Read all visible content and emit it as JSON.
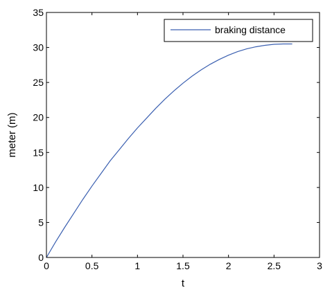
{
  "chart_data": {
    "type": "line",
    "xlabel": "t",
    "ylabel": "meter (m)",
    "xlim": [
      0,
      3
    ],
    "ylim": [
      0,
      35
    ],
    "x_ticks": [
      "0",
      "0.5",
      "1",
      "1.5",
      "2",
      "2.5",
      "3"
    ],
    "y_ticks": [
      "0",
      "5",
      "10",
      "15",
      "20",
      "25",
      "30",
      "35"
    ],
    "grid": false,
    "legend_position": "top-right",
    "series": [
      {
        "name": "braking distance",
        "color": "#3a5fb0",
        "x": [
          0,
          0.1,
          0.2,
          0.3,
          0.4,
          0.5,
          0.6,
          0.7,
          0.8,
          0.9,
          1.0,
          1.1,
          1.2,
          1.3,
          1.4,
          1.5,
          1.6,
          1.7,
          1.8,
          1.9,
          2.0,
          2.1,
          2.2,
          2.3,
          2.4,
          2.5,
          2.6,
          2.7
        ],
        "y": [
          0.0,
          2.2,
          4.3,
          6.3,
          8.3,
          10.2,
          12.0,
          13.8,
          15.4,
          17.0,
          18.5,
          19.9,
          21.3,
          22.6,
          23.8,
          24.9,
          25.9,
          26.8,
          27.6,
          28.3,
          28.9,
          29.4,
          29.8,
          30.1,
          30.3,
          30.45,
          30.5,
          30.5
        ]
      }
    ]
  }
}
